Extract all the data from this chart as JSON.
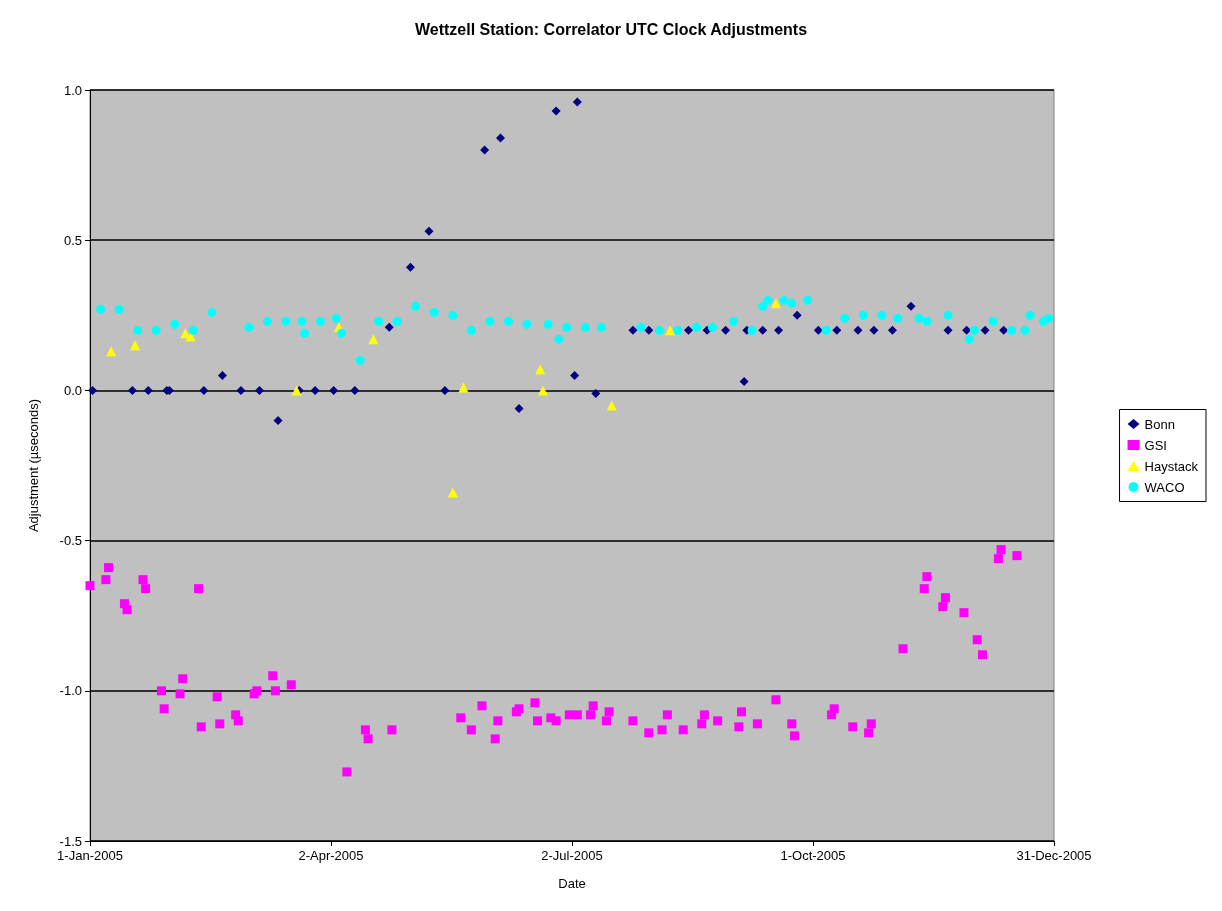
{
  "chart_data": {
    "type": "scatter",
    "title": "Wettzell Station: Correlator UTC Clock Adjustments",
    "xlabel": "Date",
    "ylabel": "Adjustment (µseconds)",
    "xlim": [
      "2005-01-01",
      "2005-12-31"
    ],
    "xticks": [
      {
        "value": "2005-01-01",
        "label": "1-Jan-2005"
      },
      {
        "value": "2005-04-02",
        "label": "2-Apr-2005"
      },
      {
        "value": "2005-07-02",
        "label": "2-Jul-2005"
      },
      {
        "value": "2005-10-01",
        "label": "1-Oct-2005"
      },
      {
        "value": "2005-12-31",
        "label": "31-Dec-2005"
      }
    ],
    "ylim": [
      -1.5,
      1
    ],
    "yticks": [
      -1.5,
      {
        "value": -1,
        "label": "-1.0"
      },
      -0.5,
      {
        "value": 0,
        "label": "0.0"
      },
      0.5,
      {
        "value": 1,
        "label": "1.0"
      }
    ],
    "grid": "y",
    "legend": "right",
    "series": [
      {
        "name": "Bonn",
        "color": "#000080",
        "marker": "diamond",
        "x": [
          "2005-01-02",
          "2005-01-17",
          "2005-01-23",
          "2005-01-30",
          "2005-01-31",
          "2005-02-13",
          "2005-02-20",
          "2005-02-27",
          "2005-03-06",
          "2005-03-13",
          "2005-03-21",
          "2005-03-27",
          "2005-04-03",
          "2005-04-11",
          "2005-04-24",
          "2005-05-02",
          "2005-05-09",
          "2005-05-15",
          "2005-05-30",
          "2005-06-05",
          "2005-06-12",
          "2005-06-26",
          "2005-07-03",
          "2005-07-04",
          "2005-07-11",
          "2005-07-25",
          "2005-07-31",
          "2005-08-08",
          "2005-08-15",
          "2005-08-22",
          "2005-08-29",
          "2005-09-05",
          "2005-09-06",
          "2005-09-12",
          "2005-09-18",
          "2005-09-25",
          "2005-10-03",
          "2005-10-10",
          "2005-10-18",
          "2005-10-24",
          "2005-10-31",
          "2005-11-07",
          "2005-11-21",
          "2005-11-28",
          "2005-12-05",
          "2005-12-12"
        ],
        "values": [
          0,
          0,
          0,
          0,
          0,
          0,
          0.05,
          0,
          0,
          -0.1,
          0,
          0,
          0,
          0,
          0.21,
          0.41,
          0.53,
          0,
          0.8,
          0.84,
          -0.06,
          0.93,
          0.05,
          0.96,
          -0.01,
          0.2,
          0.2,
          null,
          0.2,
          0.2,
          0.2,
          0.03,
          0.2,
          0.2,
          0.2,
          0.25,
          0.2,
          0.2,
          0.2,
          0.2,
          0.2,
          0.28,
          0.2,
          0.2,
          0.2,
          0.2
        ]
      },
      {
        "name": "GSI",
        "color": "#ff00ff",
        "marker": "square",
        "x": [
          "2005-01-01",
          "2005-01-07",
          "2005-01-08",
          "2005-01-14",
          "2005-01-15",
          "2005-01-21",
          "2005-01-22",
          "2005-01-28",
          "2005-01-29",
          "2005-02-04",
          "2005-02-05",
          "2005-02-11",
          "2005-02-12",
          "2005-02-18",
          "2005-02-19",
          "2005-02-25",
          "2005-02-26",
          "2005-03-04",
          "2005-03-05",
          "2005-03-11",
          "2005-03-12",
          "2005-03-18",
          "2005-04-08",
          "2005-04-15",
          "2005-04-16",
          "2005-04-25",
          "2005-05-21",
          "2005-05-25",
          "2005-05-29",
          "2005-06-03",
          "2005-06-04",
          "2005-06-11",
          "2005-06-12",
          "2005-06-18",
          "2005-06-19",
          "2005-06-24",
          "2005-06-26",
          "2005-07-01",
          "2005-07-04",
          "2005-07-09",
          "2005-07-10",
          "2005-07-15",
          "2005-07-16",
          "2005-07-25",
          "2005-07-31",
          "2005-08-05",
          "2005-08-07",
          "2005-08-13",
          "2005-08-20",
          "2005-08-21",
          "2005-08-26",
          "2005-09-03",
          "2005-09-04",
          "2005-09-10",
          "2005-09-17",
          "2005-09-23",
          "2005-09-24",
          "2005-10-08",
          "2005-10-09",
          "2005-10-16",
          "2005-10-22",
          "2005-10-23",
          "2005-11-04",
          "2005-11-12",
          "2005-11-13",
          "2005-11-19",
          "2005-11-20",
          "2005-11-27",
          "2005-12-02",
          "2005-12-04",
          "2005-12-10",
          "2005-12-11",
          "2005-12-17"
        ],
        "values": [
          -0.65,
          -0.63,
          -0.59,
          -0.71,
          -0.73,
          -0.63,
          -0.66,
          -1.0,
          -1.06,
          -1.01,
          -0.96,
          -0.66,
          -1.12,
          -1.02,
          -1.11,
          -1.08,
          -1.1,
          -1.01,
          -1.0,
          -0.95,
          -1.0,
          -0.98,
          -1.27,
          -1.13,
          -1.16,
          -1.13,
          -1.09,
          -1.13,
          -1.05,
          -1.16,
          -1.1,
          -1.07,
          -1.06,
          -1.04,
          -1.1,
          -1.09,
          -1.1,
          -1.08,
          -1.08,
          -1.08,
          -1.05,
          -1.1,
          -1.07,
          -1.1,
          -1.14,
          -1.13,
          -1.08,
          -1.13,
          -1.11,
          -1.08,
          -1.1,
          -1.12,
          -1.07,
          -1.11,
          -1.03,
          -1.11,
          -1.15,
          -1.08,
          -1.06,
          -1.12,
          -1.14,
          -1.11,
          -0.86,
          -0.66,
          -0.62,
          -0.72,
          -0.69,
          -0.74,
          -0.83,
          -0.88,
          -0.56,
          -0.53,
          -0.55
        ]
      },
      {
        "name": "Haystack",
        "color": "#ffff00",
        "marker": "triangle",
        "x": [
          "2005-01-09",
          "2005-01-18",
          "2005-02-06",
          "2005-02-08",
          "2005-03-20",
          "2005-04-05",
          "2005-04-18",
          "2005-05-18",
          "2005-05-22",
          "2005-06-20",
          "2005-06-21",
          "2005-07-17",
          "2005-08-08",
          "2005-09-17"
        ],
        "values": [
          0.13,
          0.15,
          0.19,
          0.18,
          0,
          0.21,
          0.17,
          -0.34,
          0.01,
          0.07,
          0,
          -0.05,
          0.2,
          0.29
        ]
      },
      {
        "name": "WACO",
        "color": "#00ffff",
        "marker": "circle",
        "x": [
          "2005-01-05",
          "2005-01-12",
          "2005-01-19",
          "2005-01-26",
          "2005-02-02",
          "2005-02-09",
          "2005-02-16",
          "2005-03-02",
          "2005-03-09",
          "2005-03-16",
          "2005-03-22",
          "2005-03-23",
          "2005-03-29",
          "2005-04-04",
          "2005-04-06",
          "2005-04-13",
          "2005-04-20",
          "2005-04-27",
          "2005-05-04",
          "2005-05-11",
          "2005-05-18",
          "2005-05-25",
          "2005-06-01",
          "2005-06-08",
          "2005-06-15",
          "2005-06-23",
          "2005-06-27",
          "2005-06-30",
          "2005-07-07",
          "2005-07-13",
          "2005-07-28",
          "2005-08-04",
          "2005-08-11",
          "2005-08-18",
          "2005-08-24",
          "2005-09-01",
          "2005-09-08",
          "2005-09-12",
          "2005-09-14",
          "2005-09-20",
          "2005-09-23",
          "2005-09-29",
          "2005-10-06",
          "2005-10-13",
          "2005-10-20",
          "2005-10-27",
          "2005-11-02",
          "2005-11-10",
          "2005-11-13",
          "2005-11-21",
          "2005-11-29",
          "2005-12-01",
          "2005-12-08",
          "2005-12-15",
          "2005-12-20",
          "2005-12-22",
          "2005-12-27",
          "2005-12-29"
        ],
        "values": [
          0.27,
          0.27,
          0.2,
          0.2,
          0.22,
          0.2,
          0.26,
          0.21,
          0.23,
          0.23,
          0.23,
          0.19,
          0.23,
          0.24,
          0.19,
          0.1,
          0.23,
          0.23,
          0.28,
          0.26,
          0.25,
          0.2,
          0.23,
          0.23,
          0.22,
          0.22,
          0.17,
          0.21,
          0.21,
          0.21,
          0.21,
          0.2,
          0.2,
          0.21,
          0.21,
          0.23,
          0.2,
          0.28,
          0.3,
          0.3,
          0.29,
          0.3,
          0.2,
          0.24,
          0.25,
          0.25,
          0.24,
          0.24,
          0.23,
          0.25,
          0.17,
          0.2,
          0.23,
          0.2,
          0.2,
          0.25,
          0.23,
          0.24
        ]
      }
    ]
  }
}
